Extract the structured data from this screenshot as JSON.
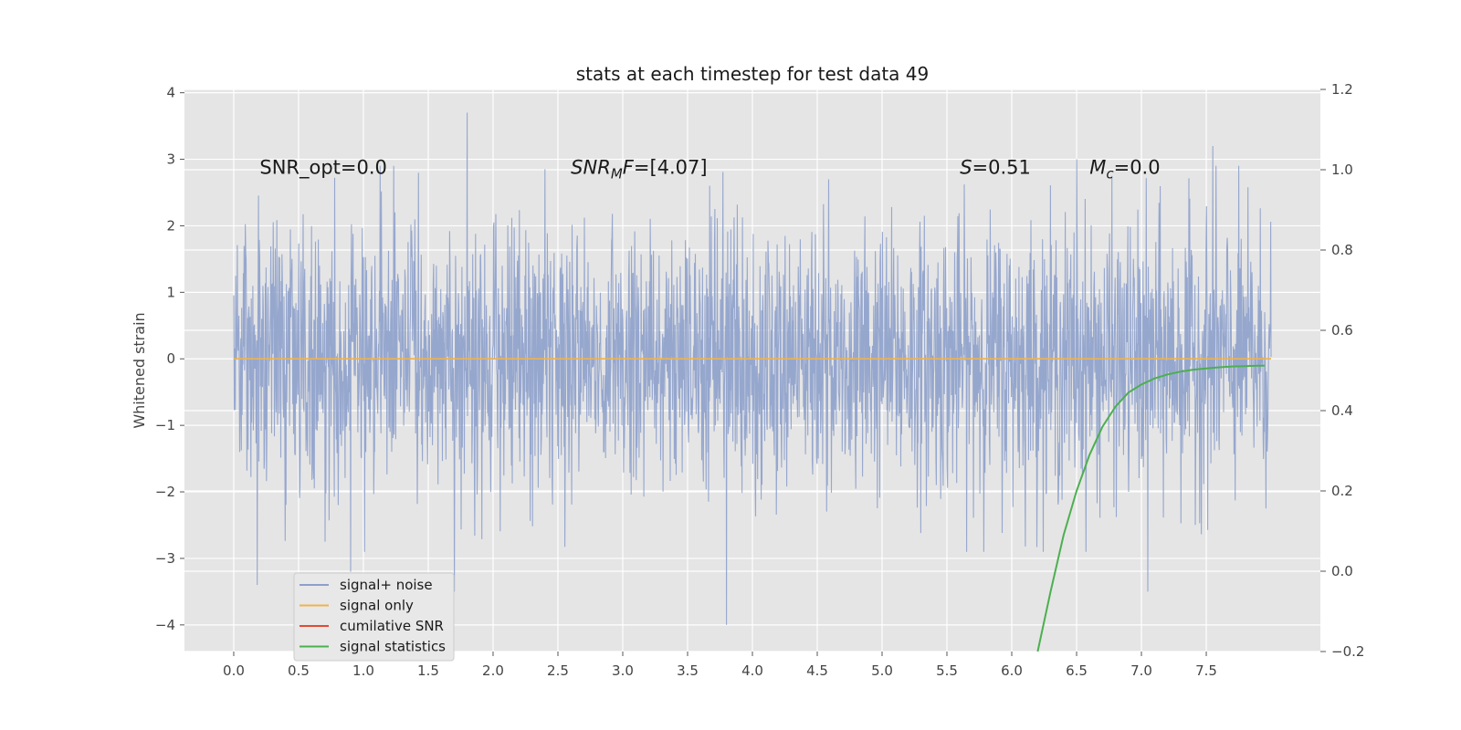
{
  "chart_data": {
    "type": "line",
    "title": "stats at each timestep for test data 49",
    "ylabel": "Whitened strain",
    "xlim": [
      -0.38,
      8.38
    ],
    "ylim": [
      -4.4,
      4.05
    ],
    "y2lim": [
      -0.2,
      1.2
    ],
    "x_ticks": [
      0.0,
      0.5,
      1.0,
      1.5,
      2.0,
      2.5,
      3.0,
      3.5,
      4.0,
      4.5,
      5.0,
      5.5,
      6.0,
      6.5,
      7.0,
      7.5
    ],
    "x_tick_labels": [
      "0.0",
      "0.5",
      "1.0",
      "1.5",
      "2.0",
      "2.5",
      "3.0",
      "3.5",
      "4.0",
      "4.5",
      "5.0",
      "5.5",
      "6.0",
      "6.5",
      "7.0",
      "7.5"
    ],
    "y_ticks": [
      4,
      3,
      2,
      1,
      0,
      -1,
      -2,
      -3,
      -4
    ],
    "y_tick_labels": [
      "4",
      "3",
      "2",
      "1",
      "0",
      "−1",
      "−2",
      "−3",
      "−4"
    ],
    "y2_ticks": [
      1.2,
      1.0,
      0.8,
      0.6,
      0.4,
      0.2,
      0.0,
      -0.2
    ],
    "y2_tick_labels": [
      "1.2",
      "1.0",
      "0.8",
      "0.6",
      "0.4",
      "0.2",
      "0.0",
      "−0.2"
    ],
    "grid": true,
    "legend_placement": "lower-left",
    "series": [
      {
        "name": "signal+ noise",
        "color": "#8da0cb",
        "axis": "left",
        "x_range": [
          0.0,
          8.0
        ],
        "noise_amplitude": 1.0,
        "peaks": [
          [
            0.18,
            -3.4
          ],
          [
            0.9,
            -3.2
          ],
          [
            1.8,
            3.7
          ],
          [
            1.7,
            -3.5
          ],
          [
            3.8,
            -4.0
          ],
          [
            6.5,
            3.0
          ],
          [
            7.05,
            -3.5
          ],
          [
            7.55,
            3.2
          ],
          [
            2.4,
            2.85
          ]
        ]
      },
      {
        "name": "signal only",
        "color": "#f0b24b",
        "axis": "left",
        "x": [
          0.0,
          8.0
        ],
        "y": [
          0.0,
          0.0
        ]
      },
      {
        "name": "cumilative SNR",
        "color": "#e24a33",
        "axis": "right",
        "x": [],
        "y": []
      },
      {
        "name": "signal statistics",
        "color": "#4caf50",
        "axis": "right",
        "x": [
          6.2,
          6.3,
          6.4,
          6.5,
          6.6,
          6.7,
          6.8,
          6.9,
          7.0,
          7.1,
          7.2,
          7.3,
          7.4,
          7.5,
          7.6,
          7.7,
          7.8,
          7.9,
          7.95
        ],
        "y": [
          -0.2,
          -0.05,
          0.09,
          0.2,
          0.29,
          0.36,
          0.41,
          0.445,
          0.465,
          0.48,
          0.49,
          0.497,
          0.502,
          0.505,
          0.508,
          0.51,
          0.511,
          0.512,
          0.512
        ]
      }
    ],
    "annotations": [
      {
        "x": 0.2,
        "y": 2.88,
        "parts": [
          {
            "t": "SNR_opt=0.0"
          }
        ]
      },
      {
        "x": 2.6,
        "y": 2.88,
        "parts": [
          {
            "t": "SNR",
            "i": true
          },
          {
            "t": "M",
            "i": true,
            "sub": true
          },
          {
            "t": "F",
            "i": true
          },
          {
            "t": "=[4.07]"
          }
        ]
      },
      {
        "x": 5.6,
        "y": 2.88,
        "parts": [
          {
            "t": "S",
            "i": true
          },
          {
            "t": "=0.51"
          }
        ]
      },
      {
        "x": 6.6,
        "y": 2.88,
        "parts": [
          {
            "t": "M",
            "i": true
          },
          {
            "t": "c",
            "i": true,
            "sub": true
          },
          {
            "t": "=0.0"
          }
        ]
      }
    ]
  }
}
